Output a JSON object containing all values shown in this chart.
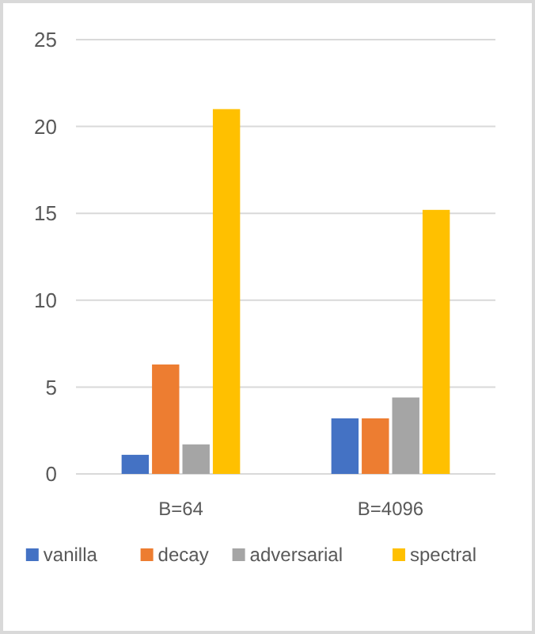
{
  "chart_data": {
    "type": "bar",
    "categories": [
      "B=64",
      "B=4096"
    ],
    "series": [
      {
        "name": "vanilla",
        "color": "#4472c4",
        "values": [
          1.1,
          3.2
        ]
      },
      {
        "name": "decay",
        "color": "#ed7d31",
        "values": [
          6.3,
          3.2
        ]
      },
      {
        "name": "adversarial",
        "color": "#a5a5a5",
        "values": [
          1.7,
          4.4
        ]
      },
      {
        "name": "spectral",
        "color": "#ffc000",
        "values": [
          21.0,
          15.2
        ]
      }
    ],
    "ylim": [
      0,
      25
    ],
    "yticks": [
      0,
      5,
      10,
      15,
      20,
      25
    ],
    "grid": "y",
    "legend": "bottom"
  }
}
